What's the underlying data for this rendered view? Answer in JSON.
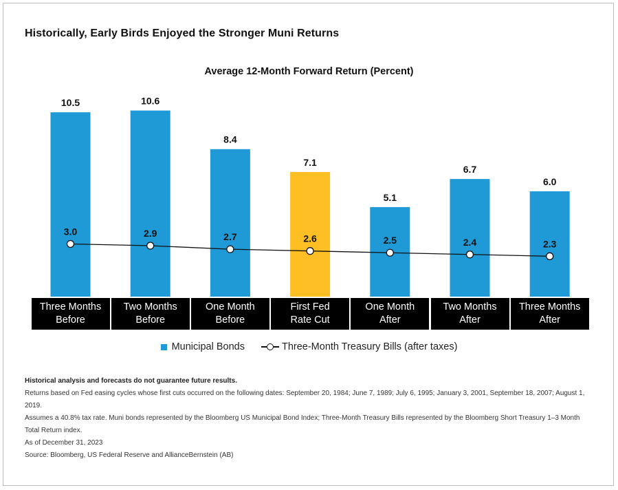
{
  "main_title": "Historically, Early Birds Enjoyed the Stronger Muni Returns",
  "chart_data": {
    "type": "bar",
    "title": "Average 12-Month Forward Return (Percent)",
    "categories": [
      [
        "Three Months",
        "Before"
      ],
      [
        "Two Months",
        "Before"
      ],
      [
        "One Month",
        "Before"
      ],
      [
        "First Fed",
        "Rate Cut"
      ],
      [
        "One Month",
        "After"
      ],
      [
        "Two Months",
        "After"
      ],
      [
        "Three Months",
        "After"
      ]
    ],
    "series": [
      {
        "name": "Municipal Bonds",
        "type": "bar",
        "values": [
          10.5,
          10.6,
          8.4,
          7.1,
          5.1,
          6.7,
          6.0
        ],
        "labels": [
          "10.5",
          "10.6",
          "8.4",
          "7.1",
          "5.1",
          "6.7",
          "6.0"
        ],
        "color": "#1f9ad6",
        "highlight_index": 3,
        "highlight_color": "#fdbf24"
      },
      {
        "name": "Three-Month Treasury Bills (after taxes)",
        "type": "line",
        "values": [
          3.0,
          2.9,
          2.7,
          2.6,
          2.5,
          2.4,
          2.3
        ],
        "labels": [
          "3.0",
          "2.9",
          "2.7",
          "2.6",
          "2.5",
          "2.4",
          "2.3"
        ],
        "color": "#111111"
      }
    ],
    "ylim": [
      0,
      11.8
    ],
    "grid": false,
    "legend_position": "bottom"
  },
  "notes": {
    "disclaimer": "Historical analysis and forecasts do not guarantee future results.",
    "line1": "Returns based on Fed easing cycles whose first cuts occurred on the following dates: September 20, 1984; June 7, 1989; July 6, 1995; January 3, 2001, September 18, 2007; August 1, 2019.",
    "line2": "Assumes a 40.8% tax rate. Muni bonds represented by the Bloomberg US Municipal Bond Index; Three-Month Treasury Bills represented by the Bloomberg Short Treasury 1–3 Month Total Return index.",
    "as_of": "As of December 31, 2023",
    "source": "Source: Bloomberg, US Federal Reserve and AllianceBernstein (AB)"
  }
}
